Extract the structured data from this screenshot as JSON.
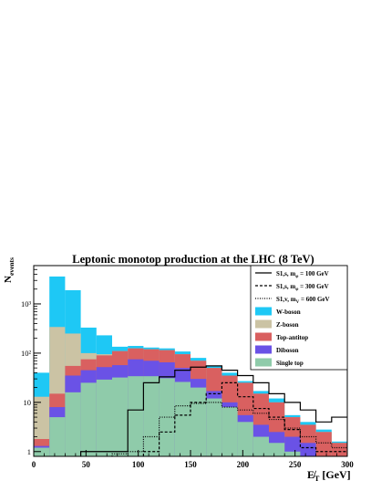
{
  "chart_data": {
    "type": "histogram",
    "title": "Leptonic monotop production at the LHC (8 TeV)",
    "xlabel": "E̸_T [GeV]",
    "ylabel": "N_events",
    "y_axis_label": {
      "main": "N",
      "sub": "events"
    },
    "x_axis_label": {
      "main": "E̸",
      "sub": "T",
      "unit": " [GeV]"
    },
    "yscale": "log",
    "xlim": [
      0,
      300
    ],
    "ylim": [
      0.8,
      6000
    ],
    "x_ticks": [
      0,
      50,
      100,
      150,
      200,
      250,
      300
    ],
    "y_ticks": [
      {
        "value": 1,
        "label": "1"
      },
      {
        "value": 10,
        "label": "10"
      },
      {
        "value": 100,
        "label": "10²"
      },
      {
        "value": 1000,
        "label": "10³"
      }
    ],
    "bin_edges": [
      0,
      15,
      30,
      45,
      60,
      75,
      90,
      105,
      120,
      135,
      150,
      165,
      180,
      195,
      210,
      225,
      240,
      255,
      270,
      285,
      300
    ],
    "stack": [
      {
        "name": "Single top",
        "color": "#8fcbaa",
        "values": [
          1.2,
          5,
          16,
          25,
          29,
          32,
          34,
          34,
          31,
          26,
          20,
          12,
          8,
          4,
          2,
          1.5,
          1,
          null,
          null,
          null
        ]
      },
      {
        "name": "Diboson",
        "color": "#6a52e6",
        "values": [
          1.3,
          8,
          35,
          45,
          52,
          57,
          75,
          70,
          65,
          50,
          30,
          17,
          10,
          5.5,
          3.5,
          2.5,
          2,
          1.5,
          null,
          null
        ]
      },
      {
        "name": "Top-antitop",
        "color": "#d96060",
        "values": [
          1.8,
          15,
          55,
          75,
          90,
          110,
          125,
          120,
          115,
          95,
          70,
          50,
          35,
          25,
          15,
          10,
          5,
          3.5,
          2.5,
          1.5
        ]
      },
      {
        "name": "Z-boson",
        "color": "#cbc3a4",
        "values": [
          13,
          340,
          250,
          100,
          95,
          110,
          125,
          120,
          115,
          95,
          70,
          50,
          35,
          25,
          15,
          10,
          5,
          3.5,
          2.5,
          1.5
        ]
      },
      {
        "name": "W-boson",
        "color": "#1ec8f5",
        "values": [
          40,
          3600,
          1900,
          330,
          230,
          135,
          140,
          130,
          125,
          108,
          80,
          55,
          40,
          27,
          17,
          12,
          5.5,
          4,
          2.8,
          1.6
        ]
      }
    ],
    "signals": [
      {
        "name": "S1,s, m_φ = 100 GeV",
        "legend": {
          "pre": "S1,s, m",
          "sub": "φ",
          "post": " = 100 GeV"
        },
        "style": "solid",
        "values": [
          null,
          null,
          null,
          1,
          1,
          1,
          7,
          25,
          33,
          45,
          52,
          55,
          45,
          35,
          25,
          15,
          10,
          7,
          4,
          5
        ]
      },
      {
        "name": "S1,s, m_φ = 300 GeV",
        "legend": {
          "pre": "S1,s, m",
          "sub": "φ",
          "post": " = 300 GeV"
        },
        "style": "dashed",
        "values": [
          null,
          null,
          null,
          null,
          null,
          null,
          null,
          1,
          2.5,
          5.5,
          10,
          15,
          25,
          13,
          7.5,
          5,
          2.8,
          1.2,
          1,
          1
        ]
      },
      {
        "name": "S1,v, m_V = 600 GeV",
        "legend": {
          "pre": "S1,v, m",
          "sub": "V",
          "post": " = 600 GeV"
        },
        "style": "dotted",
        "values": [
          null,
          null,
          null,
          null,
          null,
          0.9,
          1,
          2,
          5,
          8.5,
          9.5,
          10,
          8,
          7,
          6,
          4.5,
          3,
          2,
          1.5,
          1.2
        ]
      }
    ],
    "legend_order": [
      "S1,s, m_φ = 100 GeV",
      "S1,s, m_φ = 300 GeV",
      "S1,v, m_V = 600 GeV",
      "W-boson",
      "Z-boson",
      "Top-antitop",
      "Diboson",
      "Single top"
    ],
    "legend_position": "top-right",
    "grid": false
  }
}
